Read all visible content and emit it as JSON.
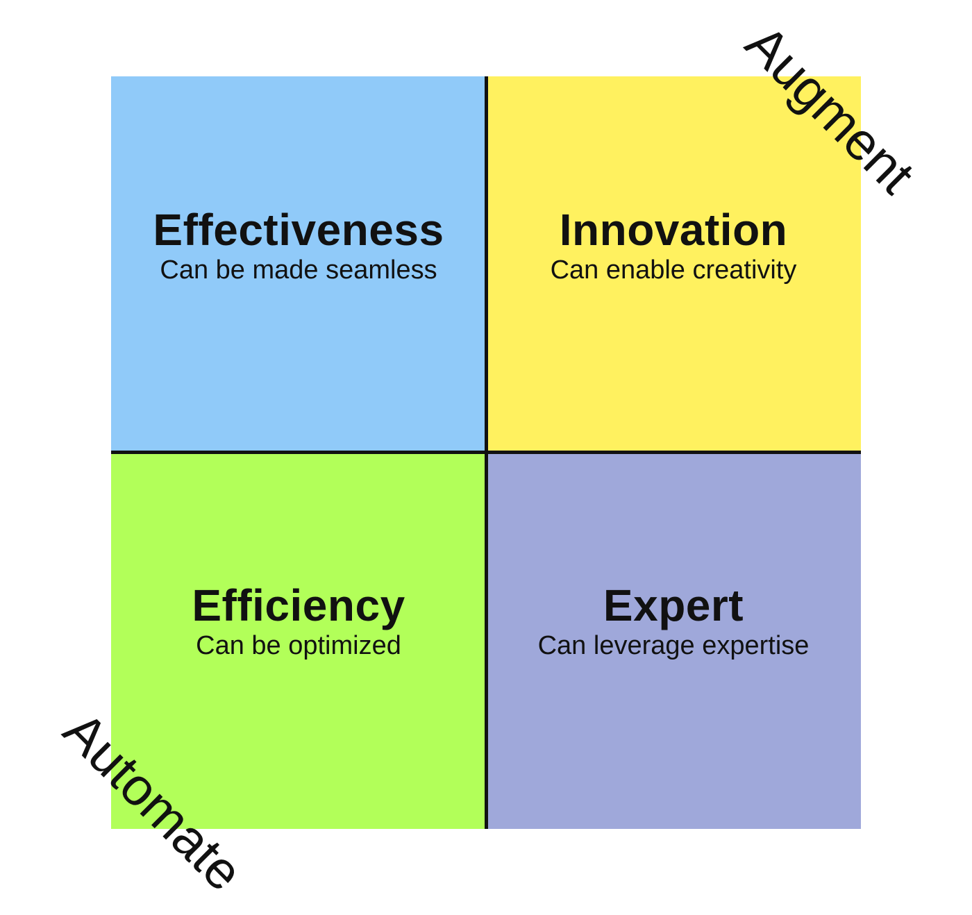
{
  "axes": {
    "top_right_label": "Augment",
    "bottom_left_label": "Automate"
  },
  "quadrants": [
    {
      "title": "Effectiveness",
      "subtitle": "Can be made seamless",
      "color": "#90caf9"
    },
    {
      "title": "Innovation",
      "subtitle": "Can enable creativity",
      "color": "#fff15f"
    },
    {
      "title": "Efficiency",
      "subtitle": "Can be optimized",
      "color": "#b2ff59"
    },
    {
      "title": "Expert",
      "subtitle": "Can leverage expertise",
      "color": "#9fa8da"
    }
  ],
  "divider_color": "#111111"
}
